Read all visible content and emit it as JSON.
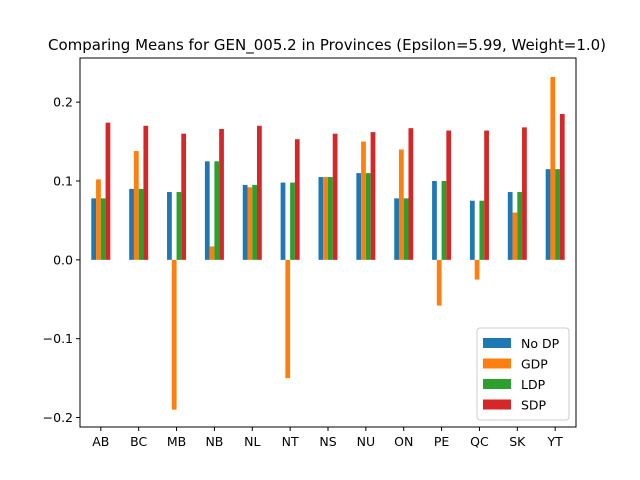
{
  "chart_data": {
    "type": "bar",
    "title": "Comparing Means for GEN_005.2 in Provinces (Epsilon=5.99, Weight=1.0)",
    "xlabel": "",
    "ylabel": "",
    "categories": [
      "AB",
      "BC",
      "MB",
      "NB",
      "NL",
      "NT",
      "NS",
      "NU",
      "ON",
      "PE",
      "QC",
      "SK",
      "YT"
    ],
    "series": [
      {
        "name": "No DP",
        "color": "#1f77b4",
        "values": [
          0.078,
          0.09,
          0.086,
          0.125,
          0.095,
          0.098,
          0.105,
          0.11,
          0.078,
          0.1,
          0.075,
          0.086,
          0.115
        ]
      },
      {
        "name": "GDP",
        "color": "#ff7f0e",
        "values": [
          0.102,
          0.138,
          -0.19,
          0.017,
          0.092,
          -0.15,
          0.105,
          0.15,
          0.14,
          -0.058,
          -0.025,
          0.06,
          0.232
        ]
      },
      {
        "name": "LDP",
        "color": "#2ca02c",
        "values": [
          0.078,
          0.09,
          0.086,
          0.125,
          0.095,
          0.098,
          0.105,
          0.11,
          0.078,
          0.1,
          0.075,
          0.086,
          0.115
        ]
      },
      {
        "name": "SDP",
        "color": "#d62728",
        "values": [
          0.174,
          0.17,
          0.16,
          0.166,
          0.17,
          0.153,
          0.16,
          0.162,
          0.167,
          0.164,
          0.164,
          0.168,
          0.185
        ]
      }
    ],
    "ylim": [
      -0.212,
      0.256
    ],
    "yticks": [
      -0.2,
      -0.1,
      0.0,
      0.1,
      0.2
    ],
    "ytick_labels": [
      "−0.2",
      "−0.1",
      "0.0",
      "0.1",
      "0.2"
    ],
    "grid": false,
    "legend_position": "lower-right"
  }
}
